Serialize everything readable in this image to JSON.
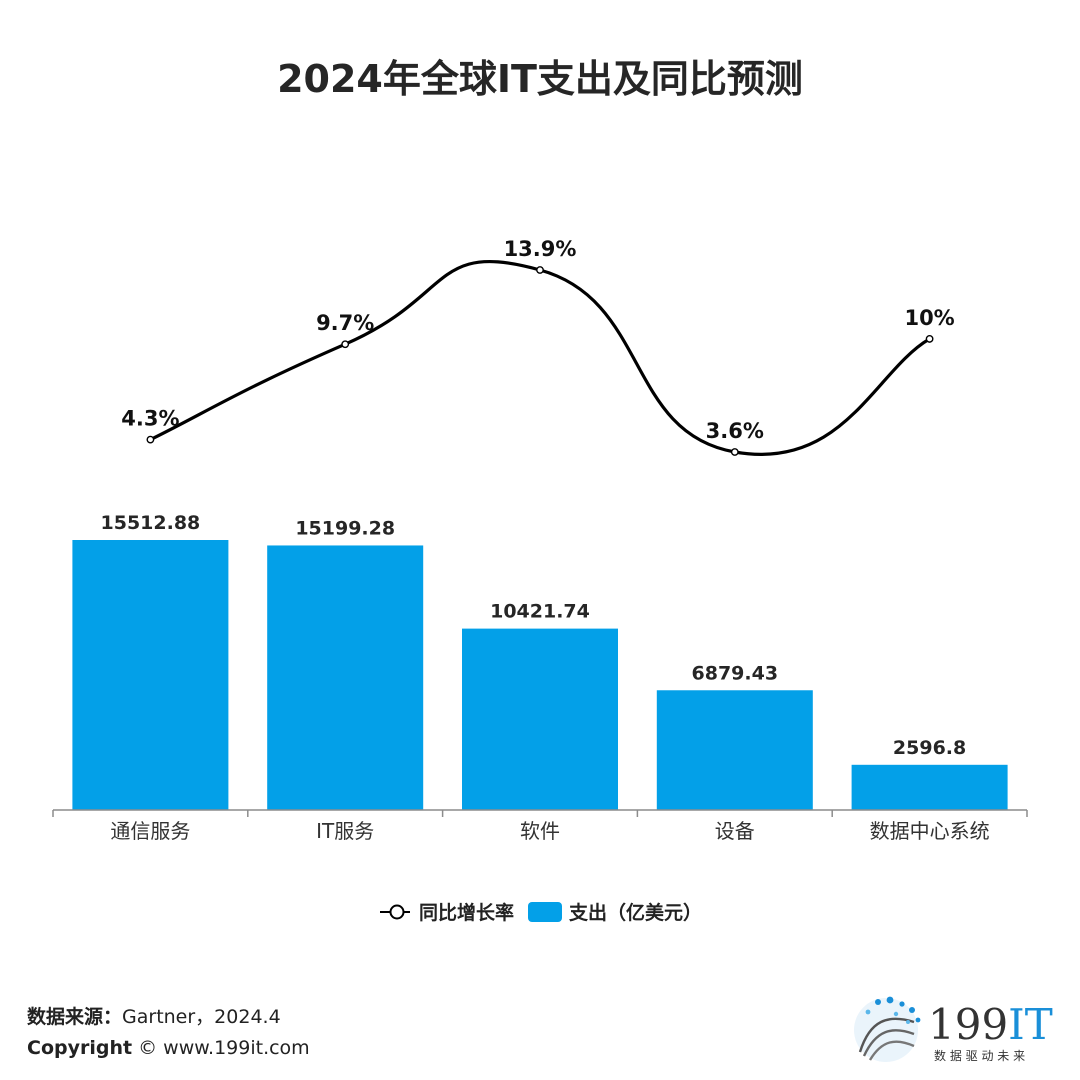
{
  "chart_data": {
    "type": "bar",
    "title": "2024年全球IT支出及同比预测",
    "categories": [
      "通信服务",
      "IT服务",
      "软件",
      "设备",
      "数据中心系统"
    ],
    "series": [
      {
        "name": "支出（亿美元）",
        "type": "bar",
        "values": [
          15512.88,
          15199.28,
          10421.74,
          6879.43,
          2596.8
        ],
        "labels": [
          "15512.88",
          "15199.28",
          "10421.74",
          "6879.43",
          "2596.8"
        ],
        "color": "#03a0e8"
      },
      {
        "name": "同比增长率",
        "type": "line",
        "smooth": true,
        "values": [
          4.3,
          9.7,
          13.9,
          3.6,
          10
        ],
        "labels": [
          "4.3%",
          "9.7%",
          "13.9%",
          "3.6%",
          "10%"
        ],
        "color": "#000000"
      }
    ],
    "legend_position": "bottom",
    "grid": false
  },
  "legend": {
    "line_label": "同比增长率",
    "bar_label": "支出（亿美元）"
  },
  "footer": {
    "source_label": "数据来源：",
    "source_value": "Gartner，2024.4",
    "copyright_label": "Copyright",
    "copyright_value": "© www.199it.com"
  },
  "logo": {
    "text": "199IT",
    "tagline": "数 据 驱 动 未 来",
    "accent": "#1a8fd8"
  }
}
